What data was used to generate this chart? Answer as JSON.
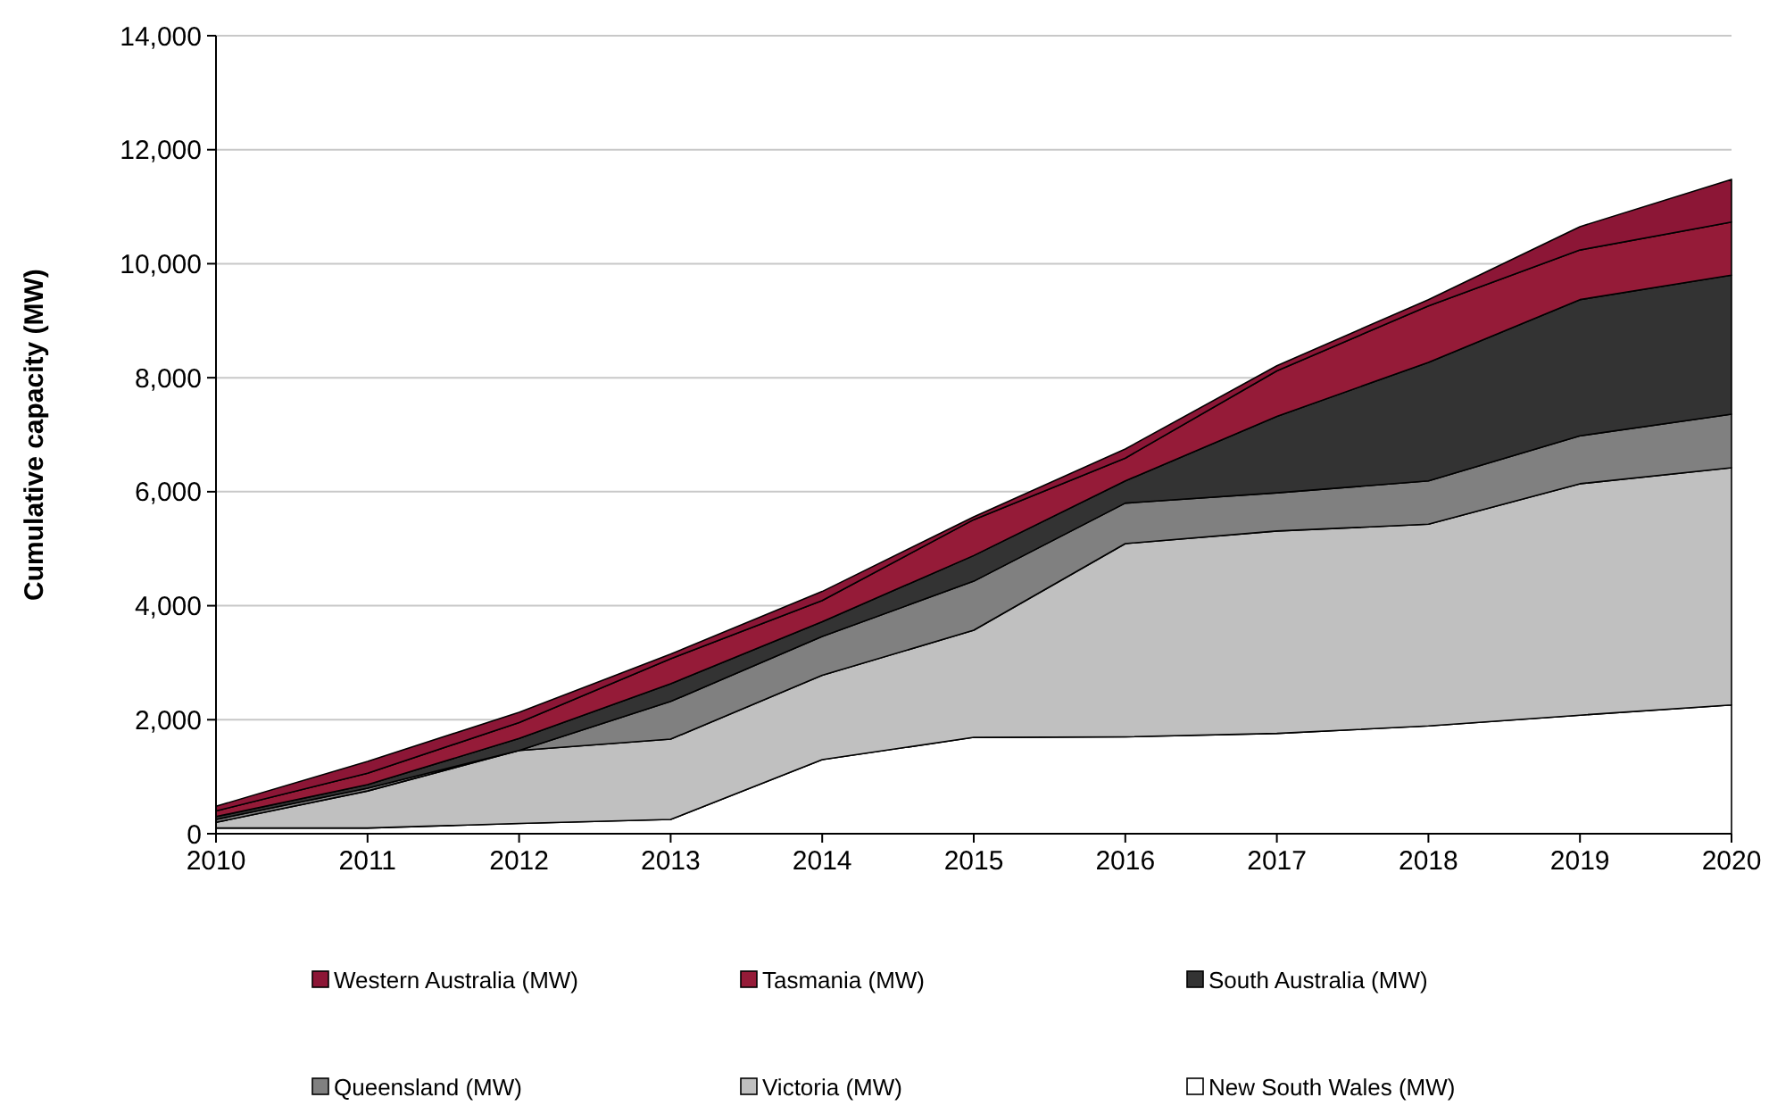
{
  "chart_data": {
    "type": "area",
    "stacked": true,
    "ylabel": "Cumulative capacity (MW)",
    "x": [
      2010,
      2011,
      2012,
      2013,
      2014,
      2015,
      2016,
      2017,
      2018,
      2019,
      2020
    ],
    "series": [
      {
        "name": "New South Wales (MW)",
        "color": "#ffffff",
        "values": [
          100,
          100,
          180,
          250,
          1300,
          1690,
          1700,
          1760,
          1890,
          2080,
          2260
        ]
      },
      {
        "name": "Victoria (MW)",
        "color": "#c0c0c0",
        "values": [
          100,
          650,
          1280,
          1410,
          1480,
          1880,
          3390,
          3550,
          3540,
          4060,
          4160
        ]
      },
      {
        "name": "Queensland (MW)",
        "color": "#808080",
        "values": [
          50,
          50,
          0,
          660,
          680,
          860,
          710,
          670,
          760,
          840,
          940
        ]
      },
      {
        "name": "South Australia (MW)",
        "color": "#333333",
        "values": [
          50,
          60,
          210,
          310,
          260,
          450,
          390,
          1340,
          2080,
          2390,
          2440
        ]
      },
      {
        "name": "Tasmania (MW)",
        "color": "#951b38",
        "values": [
          100,
          200,
          280,
          440,
          370,
          630,
          400,
          800,
          990,
          870,
          930
        ]
      },
      {
        "name": "Western Australia (MW)",
        "color": "#8c1636",
        "values": [
          80,
          210,
          180,
          80,
          160,
          50,
          160,
          90,
          110,
          410,
          750
        ]
      }
    ],
    "xlim": [
      2010,
      2020
    ],
    "xticks": [
      2010,
      2011,
      2012,
      2013,
      2014,
      2015,
      2016,
      2017,
      2018,
      2019,
      2020
    ],
    "ylim": [
      0,
      14000
    ],
    "yticks": [
      {
        "value": 0,
        "label": "0"
      },
      {
        "value": 2000,
        "label": "2,000"
      },
      {
        "value": 4000,
        "label": "4,000"
      },
      {
        "value": 6000,
        "label": "6,000"
      },
      {
        "value": 8000,
        "label": "8,000"
      },
      {
        "value": 10000,
        "label": "10,000"
      },
      {
        "value": 12000,
        "label": "12,000"
      },
      {
        "value": 14000,
        "label": "14,000"
      }
    ],
    "grid": "y",
    "legend": "bottom"
  }
}
